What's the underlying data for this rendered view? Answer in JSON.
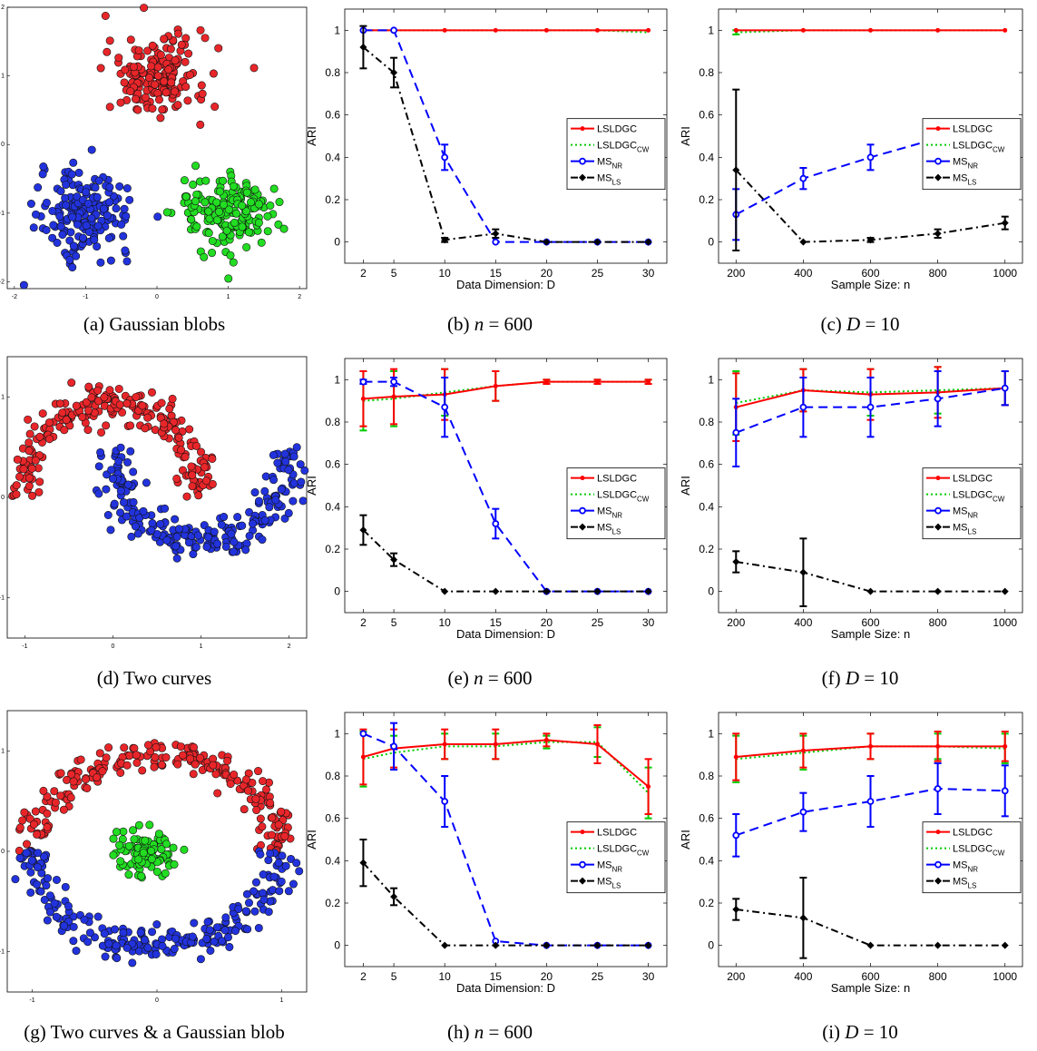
{
  "colors": {
    "red": "#e8262a",
    "green": "#22dd22",
    "blue": "#2233dd",
    "black": "#000000",
    "red_line": "#ff0000",
    "green_line": "#00cc00",
    "blue_line": "#0000ff",
    "black_line": "#000000"
  },
  "legend_labels": [
    {
      "base": "LSLDGC",
      "sub": ""
    },
    {
      "base": "LSLDGC",
      "sub": "CW"
    },
    {
      "base": "MS",
      "sub": "NR"
    },
    {
      "base": "MS",
      "sub": "LS"
    }
  ],
  "captions": [
    {
      "prefix": "(a)  Gaussian blobs",
      "math": "",
      "rest": ""
    },
    {
      "prefix": "(b)  ",
      "math": "n",
      "rest": " = 600"
    },
    {
      "prefix": "(c)  ",
      "math": "D",
      "rest": " = 10"
    },
    {
      "prefix": "(d)  Two curves",
      "math": "",
      "rest": ""
    },
    {
      "prefix": "(e)  ",
      "math": "n",
      "rest": " = 600"
    },
    {
      "prefix": "(f)  ",
      "math": "D",
      "rest": " = 10"
    },
    {
      "prefix": "(g)  Two curves & a Gaussian blob",
      "math": "",
      "rest": ""
    },
    {
      "prefix": "(h)  ",
      "math": "n",
      "rest": " = 600"
    },
    {
      "prefix": "(i)  ",
      "math": "D",
      "rest": " = 10"
    }
  ],
  "chart_data": [
    {
      "type": "scatter",
      "id": "a",
      "xlim": [
        -2.1,
        2.1
      ],
      "ylim": [
        -2.1,
        2.0
      ],
      "xticks": [
        "-2",
        "-1",
        "0",
        "1",
        "2"
      ],
      "yticks": [
        "-2",
        "-1",
        "0",
        "1",
        "2"
      ],
      "groups": [
        {
          "color": "red",
          "kind": "blob",
          "cx": 0.0,
          "cy": 1.0,
          "sx": 0.35,
          "sy": 0.3,
          "n": 180
        },
        {
          "color": "blue",
          "kind": "blob",
          "cx": -1.0,
          "cy": -1.0,
          "sx": 0.32,
          "sy": 0.3,
          "n": 180
        },
        {
          "color": "green",
          "kind": "blob",
          "cx": 1.0,
          "cy": -1.0,
          "sx": 0.35,
          "sy": 0.3,
          "n": 180
        }
      ]
    },
    {
      "type": "line",
      "id": "b",
      "x": [
        2,
        5,
        10,
        15,
        20,
        25,
        30
      ],
      "xticks": [
        "2",
        "5",
        "10",
        "15",
        "20",
        "25",
        "30"
      ],
      "xlabel": "Data Dimension: D",
      "ylabel": "ARI",
      "ylim": [
        -0.1,
        1.1
      ],
      "yticks": [
        "0",
        "0.2",
        "0.4",
        "0.6",
        "0.8",
        "1"
      ],
      "legend_y": 0.54,
      "series": [
        {
          "key": "lsldgc",
          "values": [
            1,
            1,
            1,
            1,
            1,
            1,
            1
          ],
          "err": [
            0,
            0,
            0,
            0,
            0,
            0,
            0
          ]
        },
        {
          "key": "lsldgc_cw",
          "values": [
            1,
            1,
            1,
            1,
            1,
            1,
            0.99
          ],
          "err": [
            0,
            0,
            0,
            0,
            0,
            0,
            0
          ]
        },
        {
          "key": "ms_nr",
          "values": [
            1,
            1,
            0.4,
            0.0,
            0.0,
            0.0,
            0.0
          ],
          "err": [
            0,
            0,
            0.06,
            0,
            0,
            0,
            0
          ]
        },
        {
          "key": "ms_ls",
          "values": [
            0.92,
            0.8,
            0.01,
            0.04,
            0.0,
            0.0,
            0.0
          ],
          "err": [
            0.1,
            0.07,
            0.01,
            0.02,
            0,
            0,
            0
          ]
        }
      ]
    },
    {
      "type": "line",
      "id": "c",
      "x": [
        200,
        400,
        600,
        800,
        1000
      ],
      "xticks": [
        "200",
        "400",
        "600",
        "800",
        "1000"
      ],
      "xlabel": "Sample Size: n",
      "ylabel": "ARI",
      "ylim": [
        -0.1,
        1.1
      ],
      "yticks": [
        "0",
        "0.2",
        "0.4",
        "0.6",
        "0.8",
        "1"
      ],
      "legend_y": 0.54,
      "series": [
        {
          "key": "lsldgc",
          "values": [
            1,
            1,
            1,
            1,
            1
          ],
          "err": [
            0,
            0,
            0,
            0,
            0
          ]
        },
        {
          "key": "lsldgc_cw",
          "values": [
            0.99,
            1,
            1,
            1,
            1
          ],
          "err": [
            0.01,
            0,
            0,
            0,
            0
          ]
        },
        {
          "key": "ms_nr",
          "values": [
            0.13,
            0.3,
            0.4,
            0.49,
            0.54
          ],
          "err": [
            0.12,
            0.05,
            0.06,
            0.04,
            0.03
          ]
        },
        {
          "key": "ms_ls",
          "values": [
            0.34,
            0.0,
            0.01,
            0.04,
            0.09
          ],
          "err": [
            0.38,
            0.0,
            0.01,
            0.02,
            0.03
          ]
        }
      ]
    },
    {
      "type": "scatter",
      "id": "d",
      "xlim": [
        -1.2,
        2.2
      ],
      "ylim": [
        -1.4,
        1.4
      ],
      "xticks": [
        "-1",
        "0",
        "1",
        "2"
      ],
      "yticks": [
        "-1",
        "0",
        "1"
      ],
      "groups": [
        {
          "color": "red",
          "kind": "arc",
          "cx": 0.0,
          "cy": 0.0,
          "r": 1.0,
          "a0": 0.0,
          "a1": 3.14,
          "up": 1,
          "noise": 0.1,
          "n": 230
        },
        {
          "color": "blue",
          "kind": "arc",
          "cx": 1.0,
          "cy": 0.5,
          "r": 1.0,
          "a0": 0.0,
          "a1": 3.14,
          "up": -1,
          "noise": 0.1,
          "n": 230
        }
      ]
    },
    {
      "type": "line",
      "id": "e",
      "x": [
        2,
        5,
        10,
        15,
        20,
        25,
        30
      ],
      "xticks": [
        "2",
        "5",
        "10",
        "15",
        "20",
        "25",
        "30"
      ],
      "xlabel": "Data Dimension: D",
      "ylabel": "ARI",
      "ylim": [
        -0.1,
        1.1
      ],
      "yticks": [
        "0",
        "0.2",
        "0.4",
        "0.6",
        "0.8",
        "1"
      ],
      "legend_y": 0.54,
      "series": [
        {
          "key": "lsldgc",
          "values": [
            0.91,
            0.92,
            0.93,
            0.97,
            0.99,
            0.99,
            0.99
          ],
          "err": [
            0.13,
            0.13,
            0.12,
            0.07,
            0.01,
            0.01,
            0.01
          ]
        },
        {
          "key": "lsldgc_cw",
          "values": [
            0.9,
            0.91,
            0.94,
            0.97,
            0.99,
            0.99,
            0.99
          ],
          "err": [
            0.14,
            0.13,
            0.11,
            0.07,
            0.01,
            0.01,
            0.01
          ]
        },
        {
          "key": "ms_nr",
          "values": [
            0.99,
            0.99,
            0.87,
            0.32,
            0.0,
            0.0,
            0.0
          ],
          "err": [
            0.01,
            0.02,
            0.14,
            0.07,
            0,
            0,
            0
          ]
        },
        {
          "key": "ms_ls",
          "values": [
            0.29,
            0.15,
            0.0,
            0.0,
            0.0,
            0.0,
            0.0
          ],
          "err": [
            0.07,
            0.03,
            0,
            0,
            0,
            0,
            0
          ]
        }
      ]
    },
    {
      "type": "line",
      "id": "f",
      "x": [
        200,
        400,
        600,
        800,
        1000
      ],
      "xticks": [
        "200",
        "400",
        "600",
        "800",
        "1000"
      ],
      "xlabel": "Sample Size: n",
      "ylabel": "ARI",
      "ylim": [
        -0.1,
        1.1
      ],
      "yticks": [
        "0",
        "0.2",
        "0.4",
        "0.6",
        "0.8",
        "1"
      ],
      "legend_y": 0.54,
      "series": [
        {
          "key": "lsldgc",
          "values": [
            0.87,
            0.95,
            0.93,
            0.94,
            0.96
          ],
          "err": [
            0.16,
            0.1,
            0.12,
            0.12,
            0.08
          ]
        },
        {
          "key": "lsldgc_cw",
          "values": [
            0.89,
            0.95,
            0.94,
            0.95,
            0.96
          ],
          "err": [
            0.15,
            0.1,
            0.11,
            0.11,
            0.08
          ]
        },
        {
          "key": "ms_nr",
          "values": [
            0.75,
            0.87,
            0.87,
            0.91,
            0.96
          ],
          "err": [
            0.16,
            0.14,
            0.14,
            0.13,
            0.08
          ]
        },
        {
          "key": "ms_ls",
          "values": [
            0.14,
            0.09,
            0.0,
            0.0,
            0.0
          ],
          "err": [
            0.05,
            0.16,
            0,
            0,
            0
          ]
        }
      ]
    },
    {
      "type": "scatter",
      "id": "g",
      "xlim": [
        -1.2,
        1.2
      ],
      "ylim": [
        -1.4,
        1.4
      ],
      "xticks": [
        "-1",
        "0",
        "1"
      ],
      "yticks": [
        "-1",
        "0",
        "1"
      ],
      "groups": [
        {
          "color": "red",
          "kind": "arc",
          "cx": 0.0,
          "cy": 0.0,
          "r": 1.0,
          "a0": 0.0,
          "a1": 3.14,
          "up": 1,
          "noise": 0.08,
          "n": 230
        },
        {
          "color": "blue",
          "kind": "arc",
          "cx": 0.0,
          "cy": 0.0,
          "r": 1.0,
          "a0": 0.0,
          "a1": 3.14,
          "up": -1,
          "noise": 0.08,
          "n": 230
        },
        {
          "color": "green",
          "kind": "blob",
          "cx": -0.1,
          "cy": 0.0,
          "sx": 0.12,
          "sy": 0.12,
          "n": 90
        }
      ]
    },
    {
      "type": "line",
      "id": "h",
      "x": [
        2,
        5,
        10,
        15,
        20,
        25,
        30
      ],
      "xticks": [
        "2",
        "5",
        "10",
        "15",
        "20",
        "25",
        "30"
      ],
      "xlabel": "Data Dimension: D",
      "ylabel": "ARI",
      "ylim": [
        -0.1,
        1.1
      ],
      "yticks": [
        "0",
        "0.2",
        "0.4",
        "0.6",
        "0.8",
        "1"
      ],
      "legend_y": 0.54,
      "series": [
        {
          "key": "lsldgc",
          "values": [
            0.89,
            0.93,
            0.95,
            0.95,
            0.97,
            0.95,
            0.75
          ],
          "err": [
            0.13,
            0.09,
            0.07,
            0.07,
            0.03,
            0.09,
            0.13
          ]
        },
        {
          "key": "lsldgc_cw",
          "values": [
            0.88,
            0.91,
            0.94,
            0.94,
            0.96,
            0.96,
            0.72
          ],
          "err": [
            0.13,
            0.08,
            0.06,
            0.06,
            0.03,
            0.07,
            0.12
          ]
        },
        {
          "key": "ms_nr",
          "values": [
            1.0,
            0.94,
            0.68,
            0.02,
            0.0,
            0.0,
            0.0
          ],
          "err": [
            0.0,
            0.11,
            0.12,
            0.0,
            0,
            0,
            0
          ]
        },
        {
          "key": "ms_ls",
          "values": [
            0.39,
            0.23,
            0.0,
            0.0,
            0.0,
            0.0,
            0.0
          ],
          "err": [
            0.11,
            0.04,
            0,
            0,
            0,
            0,
            0
          ]
        }
      ]
    },
    {
      "type": "line",
      "id": "i",
      "x": [
        200,
        400,
        600,
        800,
        1000
      ],
      "xticks": [
        "200",
        "400",
        "600",
        "800",
        "1000"
      ],
      "xlabel": "Sample Size: n",
      "ylabel": "ARI",
      "ylim": [
        -0.1,
        1.1
      ],
      "yticks": [
        "0",
        "0.2",
        "0.4",
        "0.6",
        "0.8",
        "1"
      ],
      "legend_y": 0.54,
      "series": [
        {
          "key": "lsldgc",
          "values": [
            0.89,
            0.92,
            0.94,
            0.94,
            0.94
          ],
          "err": [
            0.11,
            0.08,
            0.06,
            0.07,
            0.07
          ]
        },
        {
          "key": "lsldgc_cw",
          "values": [
            0.88,
            0.91,
            0.94,
            0.94,
            0.93
          ],
          "err": [
            0.11,
            0.08,
            0.06,
            0.06,
            0.07
          ]
        },
        {
          "key": "ms_nr",
          "values": [
            0.52,
            0.63,
            0.68,
            0.74,
            0.73
          ],
          "err": [
            0.1,
            0.09,
            0.12,
            0.12,
            0.12
          ]
        },
        {
          "key": "ms_ls",
          "values": [
            0.17,
            0.13,
            0.0,
            0.0,
            0.0
          ],
          "err": [
            0.05,
            0.19,
            0,
            0,
            0
          ]
        }
      ]
    }
  ]
}
